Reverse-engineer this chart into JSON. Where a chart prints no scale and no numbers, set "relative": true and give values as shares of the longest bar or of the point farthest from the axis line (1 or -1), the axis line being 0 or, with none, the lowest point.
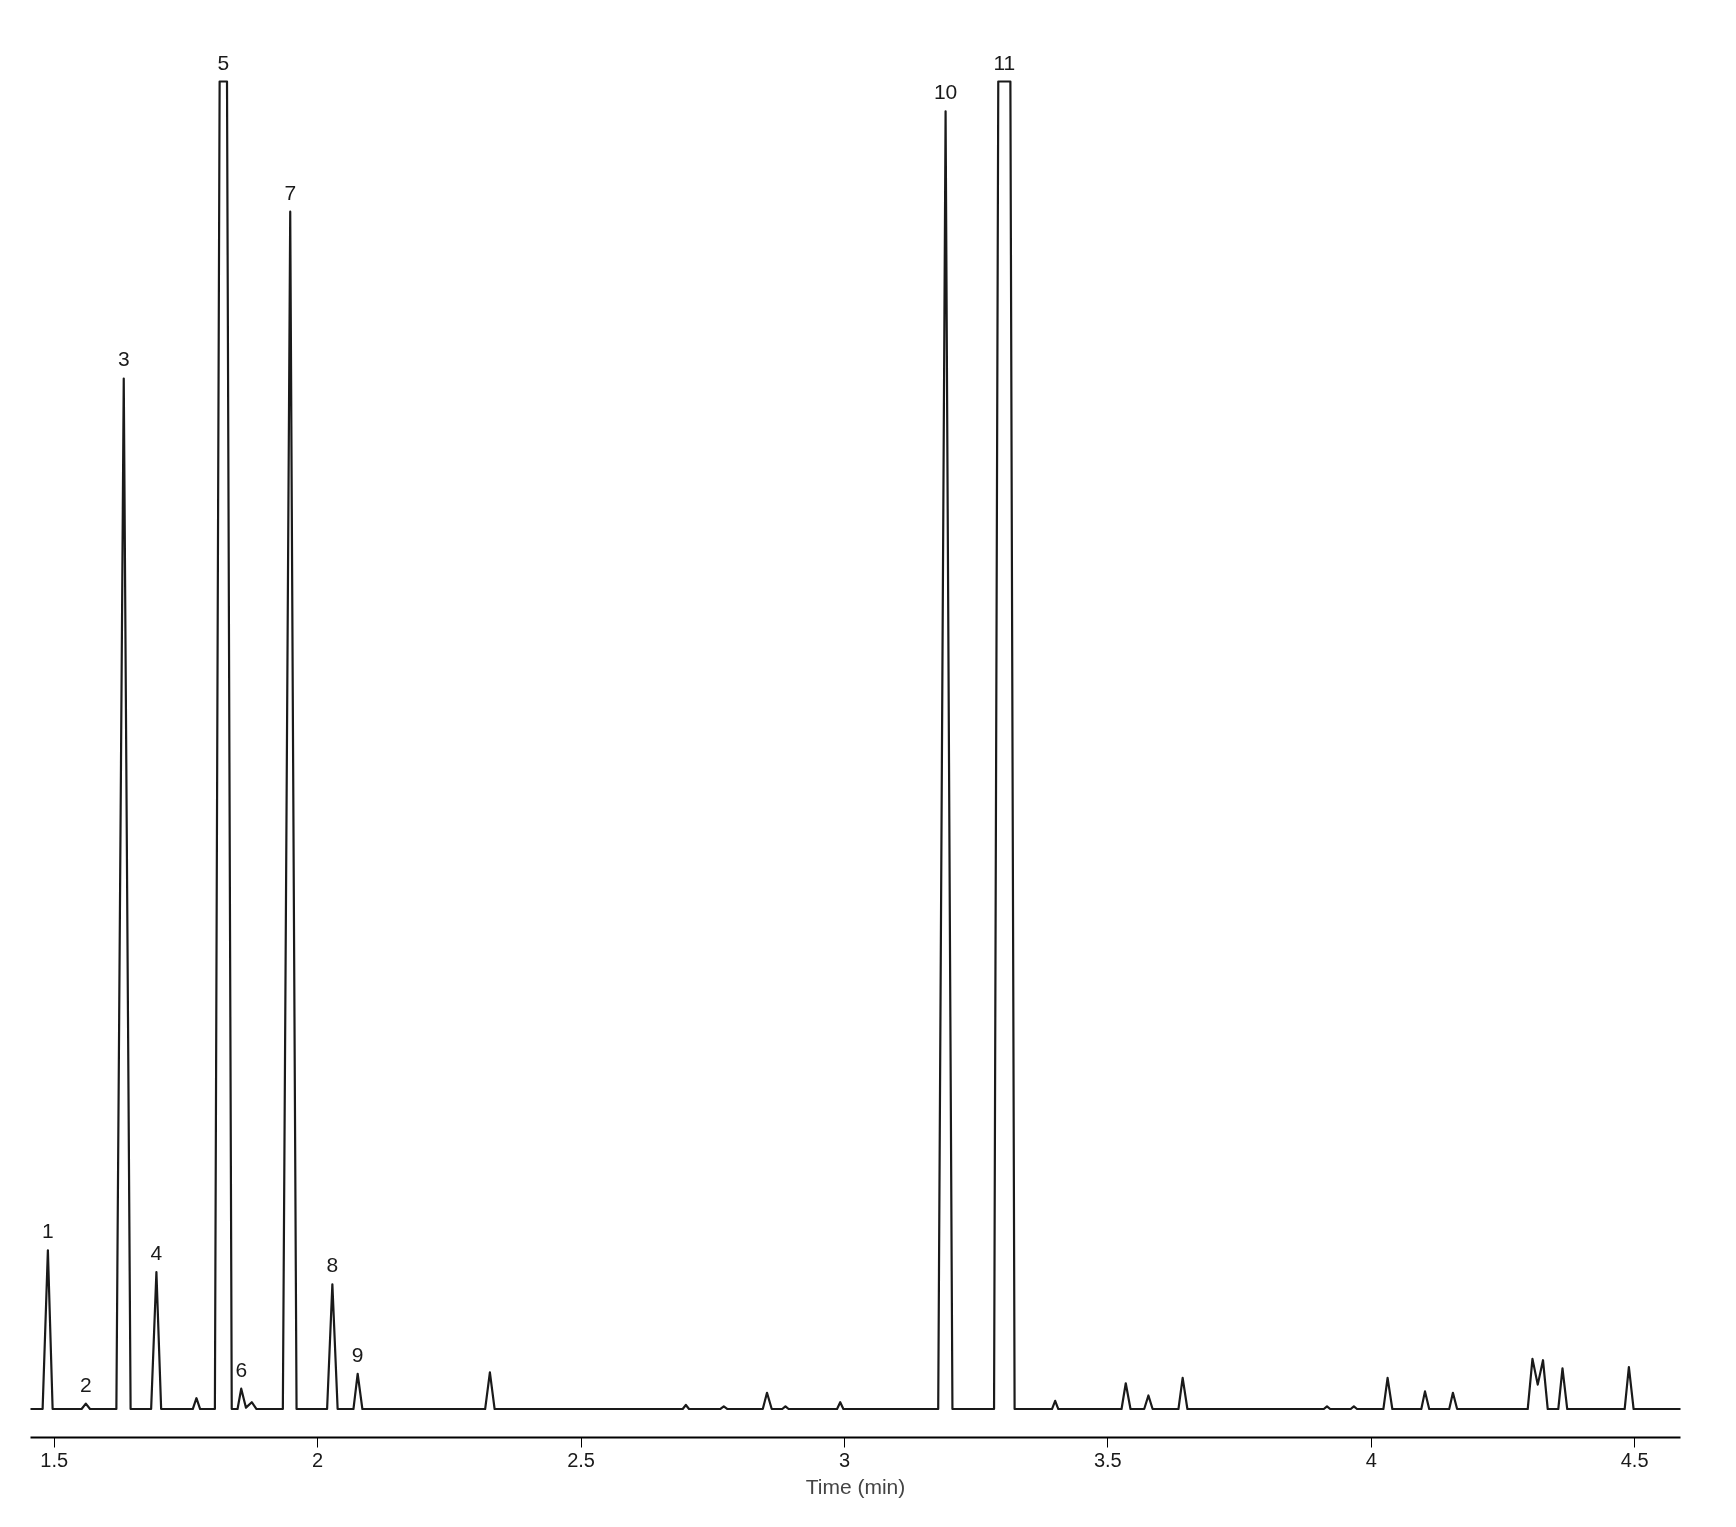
{
  "chart_data": {
    "type": "line",
    "relative": true,
    "xlabel": "Time (min)",
    "xlim": [
      1.455,
      4.587
    ],
    "xticks": [
      1.5,
      2,
      2.5,
      3,
      3.5,
      4,
      4.5
    ],
    "tick_labels": "x",
    "grid": false,
    "line_style": "solid",
    "x": [
      1.455,
      1.478,
      1.488,
      1.497,
      1.552,
      1.56,
      1.568,
      1.618,
      1.632,
      1.645,
      1.684,
      1.694,
      1.703,
      1.763,
      1.77,
      1.777,
      1.805,
      1.814,
      1.828,
      1.837,
      1.848,
      1.855,
      1.864,
      1.875,
      1.884,
      1.934,
      1.948,
      1.96,
      2.018,
      2.028,
      2.038,
      2.068,
      2.076,
      2.085,
      2.318,
      2.327,
      2.336,
      2.693,
      2.699,
      2.705,
      2.764,
      2.771,
      2.778,
      2.845,
      2.853,
      2.862,
      2.882,
      2.888,
      2.894,
      2.986,
      2.992,
      2.998,
      3.178,
      3.192,
      3.205,
      3.284,
      3.292,
      3.315,
      3.323,
      3.394,
      3.4,
      3.406,
      3.526,
      3.534,
      3.543,
      3.569,
      3.577,
      3.585,
      3.634,
      3.642,
      3.651,
      3.91,
      3.916,
      3.922,
      3.961,
      3.967,
      3.973,
      4.023,
      4.031,
      4.04,
      4.095,
      4.102,
      4.11,
      4.148,
      4.155,
      4.163,
      4.297,
      4.306,
      4.316,
      4.326,
      4.335,
      4.355,
      4.363,
      4.372,
      4.481,
      4.489,
      4.498,
      4.587
    ],
    "series": [
      {
        "color": "#1a1a1a",
        "values": [
          0.021,
          0.021,
          0.138,
          0.021,
          0.021,
          0.025,
          0.021,
          0.021,
          0.781,
          0.021,
          0.021,
          0.122,
          0.021,
          0.021,
          0.029,
          0.021,
          0.021,
          1,
          1,
          0.021,
          0.021,
          0.036,
          0.022,
          0.026,
          0.021,
          0.021,
          0.904,
          0.021,
          0.021,
          0.113,
          0.021,
          0.021,
          0.047,
          0.021,
          0.021,
          0.048,
          0.021,
          0.021,
          0.024,
          0.021,
          0.021,
          0.023,
          0.021,
          0.021,
          0.033,
          0.021,
          0.021,
          0.023,
          0.021,
          0.021,
          0.026,
          0.021,
          0.021,
          0.978,
          0.021,
          0.021,
          1,
          1,
          0.021,
          0.021,
          0.027,
          0.021,
          0.021,
          0.04,
          0.021,
          0.021,
          0.031,
          0.021,
          0.021,
          0.044,
          0.021,
          0.021,
          0.023,
          0.021,
          0.021,
          0.023,
          0.021,
          0.021,
          0.044,
          0.021,
          0.021,
          0.034,
          0.021,
          0.021,
          0.033,
          0.021,
          0.021,
          0.058,
          0.039,
          0.057,
          0.021,
          0.021,
          0.051,
          0.021,
          0.021,
          0.052,
          0.021,
          0.021
        ]
      }
    ],
    "annotations": [
      {
        "text": "1",
        "x": 1.488,
        "y": 0.138
      },
      {
        "text": "2",
        "x": 1.56,
        "y": 0.025
      },
      {
        "text": "3",
        "x": 1.632,
        "y": 0.781
      },
      {
        "text": "4",
        "x": 1.694,
        "y": 0.122
      },
      {
        "text": "5",
        "x": 1.821,
        "y": 1
      },
      {
        "text": "6",
        "x": 1.855,
        "y": 0.036
      },
      {
        "text": "7",
        "x": 1.948,
        "y": 0.904
      },
      {
        "text": "8",
        "x": 2.028,
        "y": 0.113
      },
      {
        "text": "9",
        "x": 2.076,
        "y": 0.047
      },
      {
        "text": "10",
        "x": 3.192,
        "y": 0.978
      },
      {
        "text": "11",
        "x": 3.3035,
        "y": 1
      }
    ]
  }
}
